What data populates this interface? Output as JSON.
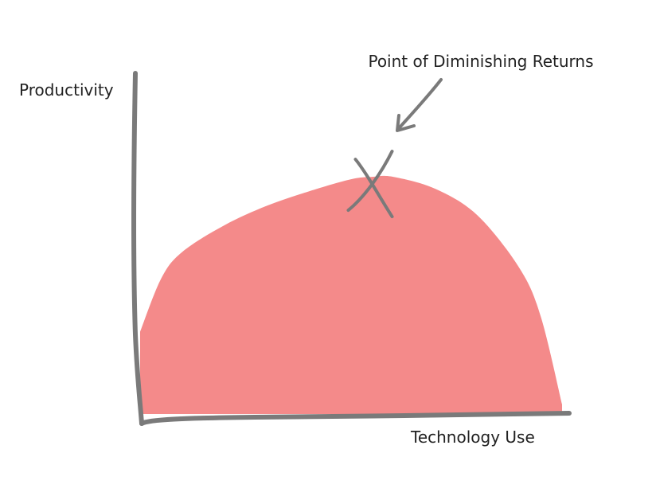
{
  "chart_data": {
    "type": "area",
    "title": "",
    "xlabel": "Technology Use",
    "ylabel": "Productivity",
    "xlim": [
      0,
      100
    ],
    "ylim": [
      0,
      100
    ],
    "x": [
      0,
      5,
      10,
      20,
      30,
      40,
      50,
      55,
      60,
      70,
      80,
      90,
      95,
      100
    ],
    "values": [
      34,
      56,
      67,
      78,
      86,
      92,
      97,
      98,
      98,
      93,
      82,
      60,
      40,
      4
    ],
    "grid": false,
    "legend": "none",
    "annotations": [
      {
        "text": "Point of Diminishing Returns",
        "x": 55,
        "y": 98,
        "marker": "cross"
      }
    ],
    "colors": {
      "fill": "#f48a8a",
      "axis": "#7a7a7a",
      "marker": "#7a7a7a",
      "text": "#222222"
    }
  }
}
